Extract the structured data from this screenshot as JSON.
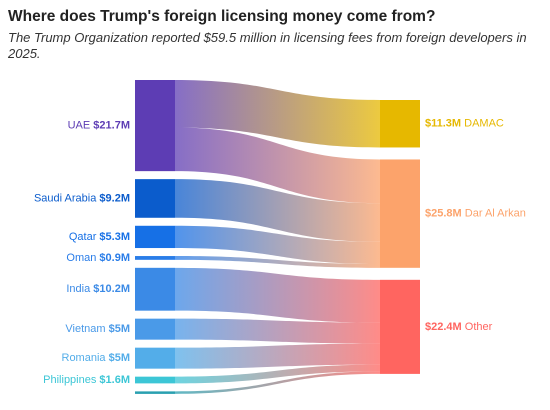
{
  "chart_data": {
    "type": "sankey",
    "title": "Where does Trump's foreign licensing money come from?",
    "subtitle": "The Trump Organization reported $59.5 million in licensing fees from foreign developers in 2025.",
    "sources": [
      {
        "name": "UAE",
        "value": 21.7,
        "value_label": "$21.7M",
        "color": "#5d3db4"
      },
      {
        "name": "Saudi Arabia",
        "value": 9.2,
        "value_label": "$9.2M",
        "color": "#0b5ccc"
      },
      {
        "name": "Qatar",
        "value": 5.3,
        "value_label": "$5.3M",
        "color": "#1670e6"
      },
      {
        "name": "Oman",
        "value": 0.9,
        "value_label": "$0.9M",
        "color": "#2a7de8"
      },
      {
        "name": "India",
        "value": 10.2,
        "value_label": "$10.2M",
        "color": "#3b8ae6"
      },
      {
        "name": "Vietnam",
        "value": 5,
        "value_label": "$5M",
        "color": "#4a9ae8"
      },
      {
        "name": "Romania",
        "value": 5,
        "value_label": "$5M",
        "color": "#53ade9"
      },
      {
        "name": "Philippines",
        "value": 1.6,
        "value_label": "$1.6M",
        "color": "#3cc6d6"
      },
      {
        "name": null,
        "value": 0.6,
        "value_label": null,
        "color": "#2aa0b0"
      }
    ],
    "targets": [
      {
        "name": "DAMAC",
        "value": 11.3,
        "value_label": "$11.3M",
        "color": "#e6b800"
      },
      {
        "name": "Dar Al Arkan",
        "value": 25.8,
        "value_label": "$25.8M",
        "color": "#fca36b"
      },
      {
        "name": "Other",
        "value": 22.4,
        "value_label": "$22.4M",
        "color": "#ff6560"
      }
    ],
    "links": [
      {
        "source": 0,
        "target": 0,
        "value": 11.3
      },
      {
        "source": 0,
        "target": 1,
        "value": 10.4
      },
      {
        "source": 1,
        "target": 1,
        "value": 9.2
      },
      {
        "source": 2,
        "target": 1,
        "value": 5.3
      },
      {
        "source": 3,
        "target": 1,
        "value": 0.9
      },
      {
        "source": 4,
        "target": 2,
        "value": 10.2
      },
      {
        "source": 5,
        "target": 2,
        "value": 5
      },
      {
        "source": 6,
        "target": 2,
        "value": 5
      },
      {
        "source": 7,
        "target": 2,
        "value": 1.6
      },
      {
        "source": 8,
        "target": 2,
        "value": 0.6
      }
    ]
  }
}
